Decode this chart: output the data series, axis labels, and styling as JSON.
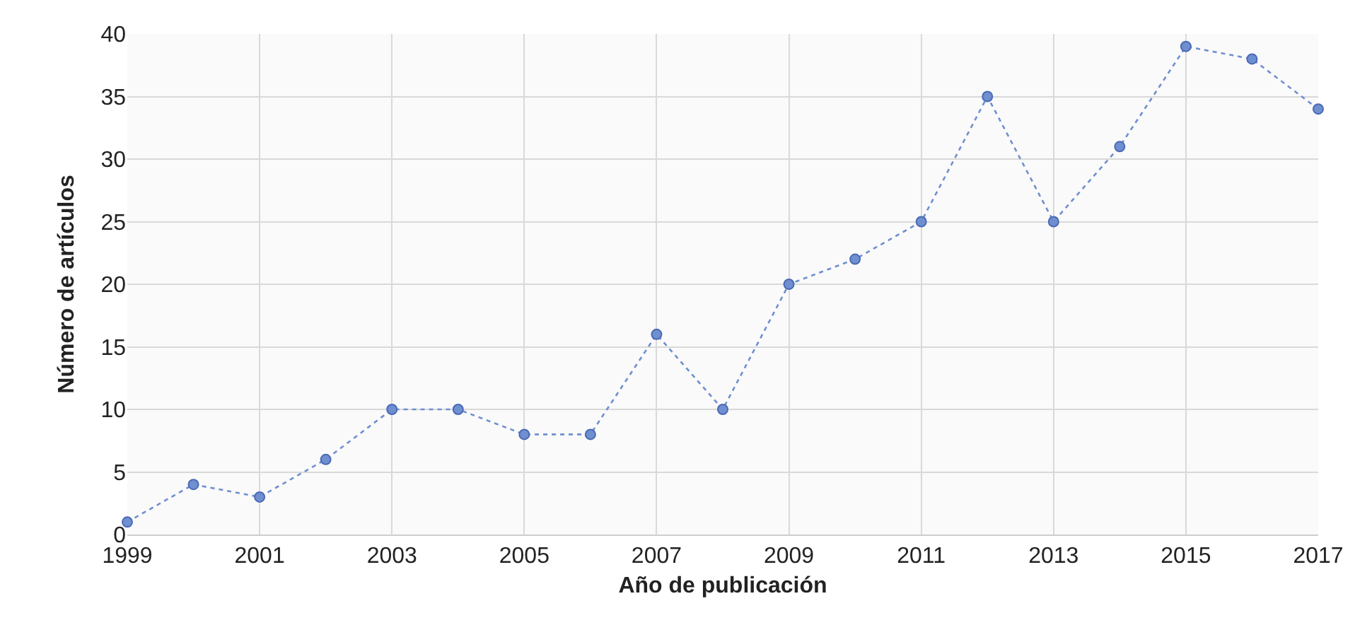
{
  "chart_data": {
    "type": "line",
    "xlabel": "Año de publicación",
    "ylabel": "Número de artículos",
    "x": [
      1999,
      2000,
      2001,
      2002,
      2003,
      2004,
      2005,
      2006,
      2007,
      2008,
      2009,
      2010,
      2011,
      2012,
      2013,
      2014,
      2015,
      2016,
      2017
    ],
    "series": [
      {
        "color": "#6f8fd0",
        "values": [
          1,
          4,
          3,
          6,
          10,
          10,
          8,
          8,
          16,
          10,
          20,
          22,
          25,
          35,
          25,
          31,
          39,
          38,
          34
        ]
      }
    ],
    "xlim": [
      1999,
      2017
    ],
    "xticks": [
      1999,
      2001,
      2003,
      2005,
      2007,
      2009,
      2011,
      2013,
      2015,
      2017
    ],
    "ylim": [
      0,
      40
    ],
    "yticks": [
      0,
      5,
      10,
      15,
      20,
      25,
      30,
      35,
      40
    ],
    "grid": true,
    "marker": "circle",
    "line_style": "dotted"
  }
}
